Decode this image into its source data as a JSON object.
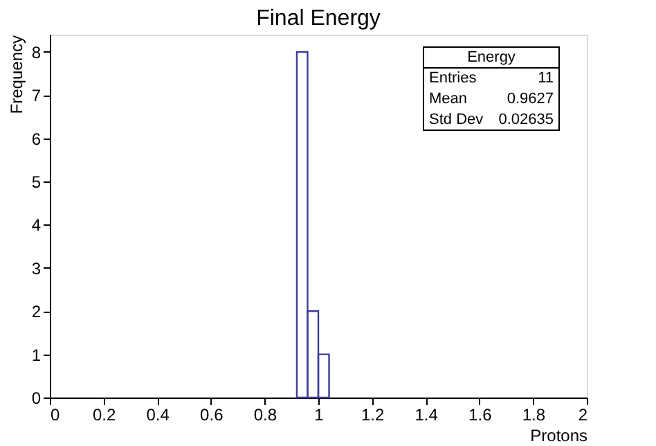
{
  "chart_data": {
    "type": "histogram",
    "title": "Final Energy",
    "xlabel": "Protons",
    "ylabel": "Frequency",
    "bins": [
      0.92,
      0.96,
      1.0,
      1.04
    ],
    "values": [
      8,
      2,
      1
    ],
    "color": "#3d3d99",
    "xlim": [
      0,
      2
    ],
    "xticks": [
      0,
      0.2,
      0.4,
      0.6,
      0.8,
      1,
      1.2,
      1.4,
      1.6,
      1.8,
      2
    ],
    "ylim": [
      0,
      8.4
    ],
    "yticks": [
      0,
      1,
      2,
      3,
      4,
      5,
      6,
      7,
      8
    ],
    "grid": false,
    "annotations": [
      "Energy",
      "Entries",
      "11",
      "Mean",
      "0.9627",
      "Std Dev",
      "0.02635"
    ]
  }
}
